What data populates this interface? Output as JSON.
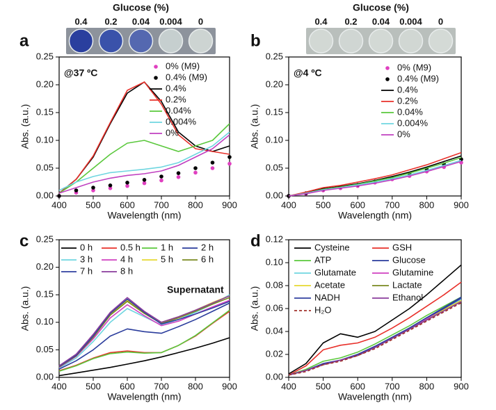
{
  "chart_data": [
    {
      "type": "line",
      "panel": "a",
      "annotation": "@37 ºC",
      "photo": {
        "title": "Glucose (%)",
        "labels": [
          "0.4",
          "0.2",
          "0.04",
          "0.004",
          "0"
        ],
        "well_colors": [
          "#2a3f9e",
          "#3a52aa",
          "#5468b0",
          "#c6cfcf",
          "#cdd4d2"
        ],
        "frame_color": "#8d939c"
      },
      "x_label": "Wavelength (nm)",
      "y_label": "Abs. (a.u.)",
      "x": [
        400,
        450,
        500,
        550,
        600,
        650,
        700,
        750,
        800,
        850,
        900
      ],
      "xlim": [
        400,
        900
      ],
      "xticks": [
        400,
        500,
        600,
        700,
        800,
        900
      ],
      "ylim": [
        0,
        0.25
      ],
      "yticks": [
        {
          "value": 0,
          "label": "0.00"
        },
        {
          "value": 0.05,
          "label": "0.05"
        },
        {
          "value": 0.1,
          "label": "0.10"
        },
        {
          "value": 0.15,
          "label": "0.15"
        },
        {
          "value": 0.2,
          "label": "0.20"
        },
        {
          "value": 0.25,
          "label": "0.25"
        }
      ],
      "series": [
        {
          "name": "0% (M9)",
          "color": "#e040c0",
          "marker": "dot",
          "values": [
            0.0,
            0.006,
            0.01,
            0.014,
            0.018,
            0.023,
            0.028,
            0.034,
            0.042,
            0.05,
            0.058
          ]
        },
        {
          "name": "0.4% (M9)",
          "color": "#000000",
          "marker": "dot",
          "values": [
            0.0,
            0.01,
            0.015,
            0.019,
            0.024,
            0.029,
            0.035,
            0.041,
            0.05,
            0.06,
            0.07
          ]
        },
        {
          "name": "0.4%",
          "color": "#000000",
          "values": [
            0.005,
            0.03,
            0.07,
            0.13,
            0.185,
            0.205,
            0.17,
            0.115,
            0.09,
            0.08,
            0.09
          ]
        },
        {
          "name": "0.2%",
          "color": "#e8302a",
          "values": [
            0.005,
            0.03,
            0.072,
            0.132,
            0.19,
            0.205,
            0.165,
            0.11,
            0.085,
            0.08,
            0.075
          ]
        },
        {
          "name": "0.04%",
          "color": "#5ac83c",
          "values": [
            0.005,
            0.025,
            0.05,
            0.075,
            0.095,
            0.1,
            0.09,
            0.08,
            0.09,
            0.1,
            0.13
          ]
        },
        {
          "name": "0.004%",
          "color": "#6fd6e0",
          "values": [
            0.01,
            0.025,
            0.035,
            0.042,
            0.045,
            0.048,
            0.052,
            0.06,
            0.075,
            0.09,
            0.115
          ]
        },
        {
          "name": "0%",
          "color": "#c040c0",
          "values": [
            0.005,
            0.015,
            0.025,
            0.032,
            0.037,
            0.04,
            0.045,
            0.055,
            0.07,
            0.085,
            0.11
          ]
        }
      ]
    },
    {
      "type": "line",
      "panel": "b",
      "annotation": "@4 ºC",
      "photo": {
        "title": "Glucose (%)",
        "labels": [
          "0.4",
          "0.2",
          "0.04",
          "0.004",
          "0"
        ],
        "well_colors": [
          "#d2d8d4",
          "#d0d6d3",
          "#d3d9d5",
          "#d1d7d3",
          "#d4dad6"
        ],
        "frame_color": "#b9bfbc"
      },
      "x_label": "Wavelength (nm)",
      "y_label": "Abs. (a.u.)",
      "x": [
        400,
        450,
        500,
        550,
        600,
        650,
        700,
        750,
        800,
        850,
        900
      ],
      "xlim": [
        400,
        900
      ],
      "xticks": [
        400,
        500,
        600,
        700,
        800,
        900
      ],
      "ylim": [
        0,
        0.25
      ],
      "yticks": [
        {
          "value": 0,
          "label": "0.00"
        },
        {
          "value": 0.05,
          "label": "0.05"
        },
        {
          "value": 0.1,
          "label": "0.10"
        },
        {
          "value": 0.15,
          "label": "0.15"
        },
        {
          "value": 0.2,
          "label": "0.20"
        },
        {
          "value": 0.25,
          "label": "0.25"
        }
      ],
      "series": [
        {
          "name": "0% (M9)",
          "color": "#e040c0",
          "marker": "dot",
          "values": [
            0.0,
            0.004,
            0.01,
            0.014,
            0.018,
            0.024,
            0.03,
            0.036,
            0.044,
            0.052,
            0.06
          ]
        },
        {
          "name": "0.4% (M9)",
          "color": "#000000",
          "marker": "dot",
          "values": [
            0.0,
            0.005,
            0.012,
            0.016,
            0.02,
            0.026,
            0.032,
            0.04,
            0.048,
            0.057,
            0.066
          ]
        },
        {
          "name": "0.4%",
          "color": "#000000",
          "values": [
            0.0,
            0.006,
            0.013,
            0.017,
            0.022,
            0.028,
            0.035,
            0.043,
            0.052,
            0.062,
            0.072
          ]
        },
        {
          "name": "0.2%",
          "color": "#e8302a",
          "values": [
            0.0,
            0.007,
            0.015,
            0.019,
            0.025,
            0.031,
            0.038,
            0.047,
            0.056,
            0.067,
            0.078
          ]
        },
        {
          "name": "0.04%",
          "color": "#5ac83c",
          "values": [
            0.0,
            0.005,
            0.012,
            0.016,
            0.021,
            0.027,
            0.033,
            0.041,
            0.05,
            0.059,
            0.069
          ]
        },
        {
          "name": "0.004%",
          "color": "#6fd6e0",
          "values": [
            0.0,
            0.005,
            0.011,
            0.015,
            0.02,
            0.025,
            0.031,
            0.038,
            0.046,
            0.055,
            0.064
          ]
        },
        {
          "name": "0%",
          "color": "#c040c0",
          "values": [
            0.0,
            0.004,
            0.01,
            0.014,
            0.018,
            0.023,
            0.029,
            0.036,
            0.044,
            0.053,
            0.062
          ]
        }
      ]
    },
    {
      "type": "line",
      "panel": "c",
      "annotation": "Supernatant",
      "x_label": "Wavelength (nm)",
      "y_label": "Abs. (a.u.)",
      "x": [
        400,
        450,
        500,
        550,
        600,
        650,
        700,
        750,
        800,
        850,
        900
      ],
      "xlim": [
        400,
        900
      ],
      "xticks": [
        400,
        500,
        600,
        700,
        800,
        900
      ],
      "ylim": [
        0,
        0.25
      ],
      "yticks": [
        {
          "value": 0,
          "label": "0.00"
        },
        {
          "value": 0.05,
          "label": "0.05"
        },
        {
          "value": 0.1,
          "label": "0.10"
        },
        {
          "value": 0.15,
          "label": "0.15"
        },
        {
          "value": 0.2,
          "label": "0.20"
        },
        {
          "value": 0.25,
          "label": "0.25"
        }
      ],
      "series": [
        {
          "name": "0 h",
          "color": "#000000",
          "values": [
            0.003,
            0.008,
            0.013,
            0.018,
            0.024,
            0.03,
            0.037,
            0.045,
            0.053,
            0.062,
            0.072
          ]
        },
        {
          "name": "0.5 h",
          "color": "#e8302a",
          "values": [
            0.012,
            0.022,
            0.035,
            0.045,
            0.048,
            0.045,
            0.045,
            0.058,
            0.075,
            0.098,
            0.12
          ]
        },
        {
          "name": "1 h",
          "color": "#5ac83c",
          "values": [
            0.011,
            0.021,
            0.034,
            0.043,
            0.046,
            0.044,
            0.045,
            0.058,
            0.076,
            0.099,
            0.122
          ]
        },
        {
          "name": "2 h",
          "color": "#2a3c9c",
          "values": [
            0.015,
            0.03,
            0.05,
            0.075,
            0.088,
            0.083,
            0.08,
            0.092,
            0.105,
            0.12,
            0.135
          ]
        },
        {
          "name": "3 h",
          "color": "#6fd6e0",
          "values": [
            0.017,
            0.035,
            0.065,
            0.1,
            0.125,
            0.11,
            0.095,
            0.105,
            0.118,
            0.133,
            0.15
          ]
        },
        {
          "name": "4 h",
          "color": "#d040c0",
          "values": [
            0.018,
            0.038,
            0.07,
            0.108,
            0.132,
            0.112,
            0.094,
            0.102,
            0.115,
            0.128,
            0.14
          ]
        },
        {
          "name": "5 h",
          "color": "#e6d830",
          "values": [
            0.02,
            0.04,
            0.075,
            0.115,
            0.14,
            0.118,
            0.1,
            0.11,
            0.122,
            0.136,
            0.148
          ]
        },
        {
          "name": "6 h",
          "color": "#7a8a20",
          "values": [
            0.019,
            0.039,
            0.073,
            0.113,
            0.138,
            0.116,
            0.098,
            0.108,
            0.12,
            0.133,
            0.145
          ]
        },
        {
          "name": "7 h",
          "color": "#3040a0",
          "values": [
            0.02,
            0.04,
            0.075,
            0.116,
            0.142,
            0.118,
            0.097,
            0.105,
            0.115,
            0.126,
            0.138
          ]
        },
        {
          "name": "8 h",
          "color": "#8a3c9c",
          "values": [
            0.021,
            0.042,
            0.078,
            0.118,
            0.145,
            0.12,
            0.1,
            0.11,
            0.122,
            0.135,
            0.148
          ]
        }
      ]
    },
    {
      "type": "line",
      "panel": "d",
      "x_label": "Wavelength (nm)",
      "y_label": "Abs. (a.u.)",
      "x": [
        400,
        450,
        500,
        550,
        600,
        650,
        700,
        750,
        800,
        850,
        900
      ],
      "xlim": [
        400,
        900
      ],
      "xticks": [
        400,
        500,
        600,
        700,
        800,
        900
      ],
      "ylim": [
        0,
        0.12
      ],
      "yticks": [
        {
          "value": 0,
          "label": "0.00"
        },
        {
          "value": 0.02,
          "label": "0.02"
        },
        {
          "value": 0.04,
          "label": "0.04"
        },
        {
          "value": 0.06,
          "label": "0.06"
        },
        {
          "value": 0.08,
          "label": "0.08"
        },
        {
          "value": 0.1,
          "label": "0.10"
        },
        {
          "value": 0.12,
          "label": "0.12"
        }
      ],
      "series": [
        {
          "name": "Cysteine",
          "color": "#000000",
          "values": [
            0.003,
            0.012,
            0.03,
            0.038,
            0.035,
            0.04,
            0.05,
            0.06,
            0.072,
            0.085,
            0.098
          ]
        },
        {
          "name": "GSH",
          "color": "#e8302a",
          "values": [
            0.002,
            0.01,
            0.024,
            0.028,
            0.03,
            0.035,
            0.043,
            0.052,
            0.062,
            0.072,
            0.083
          ]
        },
        {
          "name": "ATP",
          "color": "#5ac83c",
          "values": [
            0.002,
            0.007,
            0.014,
            0.017,
            0.022,
            0.029,
            0.037,
            0.045,
            0.054,
            0.062,
            0.07
          ]
        },
        {
          "name": "Glucose",
          "color": "#2a3c9c",
          "values": [
            0.002,
            0.006,
            0.012,
            0.015,
            0.02,
            0.027,
            0.035,
            0.043,
            0.052,
            0.061,
            0.07
          ]
        },
        {
          "name": "Glutamate",
          "color": "#6fd6e0",
          "values": [
            0.002,
            0.006,
            0.012,
            0.015,
            0.02,
            0.027,
            0.035,
            0.043,
            0.051,
            0.06,
            0.068
          ]
        },
        {
          "name": "Glutamine",
          "color": "#d040c0",
          "values": [
            0.002,
            0.006,
            0.012,
            0.015,
            0.02,
            0.027,
            0.034,
            0.042,
            0.051,
            0.059,
            0.067
          ]
        },
        {
          "name": "Acetate",
          "color": "#e6d830",
          "values": [
            0.002,
            0.006,
            0.011,
            0.015,
            0.019,
            0.026,
            0.034,
            0.042,
            0.05,
            0.059,
            0.067
          ]
        },
        {
          "name": "Lactate",
          "color": "#7a8a20",
          "values": [
            0.002,
            0.006,
            0.011,
            0.015,
            0.019,
            0.026,
            0.034,
            0.042,
            0.05,
            0.058,
            0.066
          ]
        },
        {
          "name": "NADH",
          "color": "#3040a0",
          "values": [
            0.002,
            0.006,
            0.012,
            0.015,
            0.02,
            0.027,
            0.035,
            0.043,
            0.052,
            0.06,
            0.069
          ]
        },
        {
          "name": "Ethanol",
          "color": "#8a3c9c",
          "values": [
            0.002,
            0.006,
            0.011,
            0.015,
            0.019,
            0.026,
            0.034,
            0.042,
            0.05,
            0.058,
            0.066
          ]
        },
        {
          "name": "H₂O",
          "color": "#a0302a",
          "dash": true,
          "values": [
            0.002,
            0.005,
            0.011,
            0.014,
            0.019,
            0.025,
            0.033,
            0.041,
            0.049,
            0.057,
            0.065
          ]
        }
      ]
    }
  ]
}
